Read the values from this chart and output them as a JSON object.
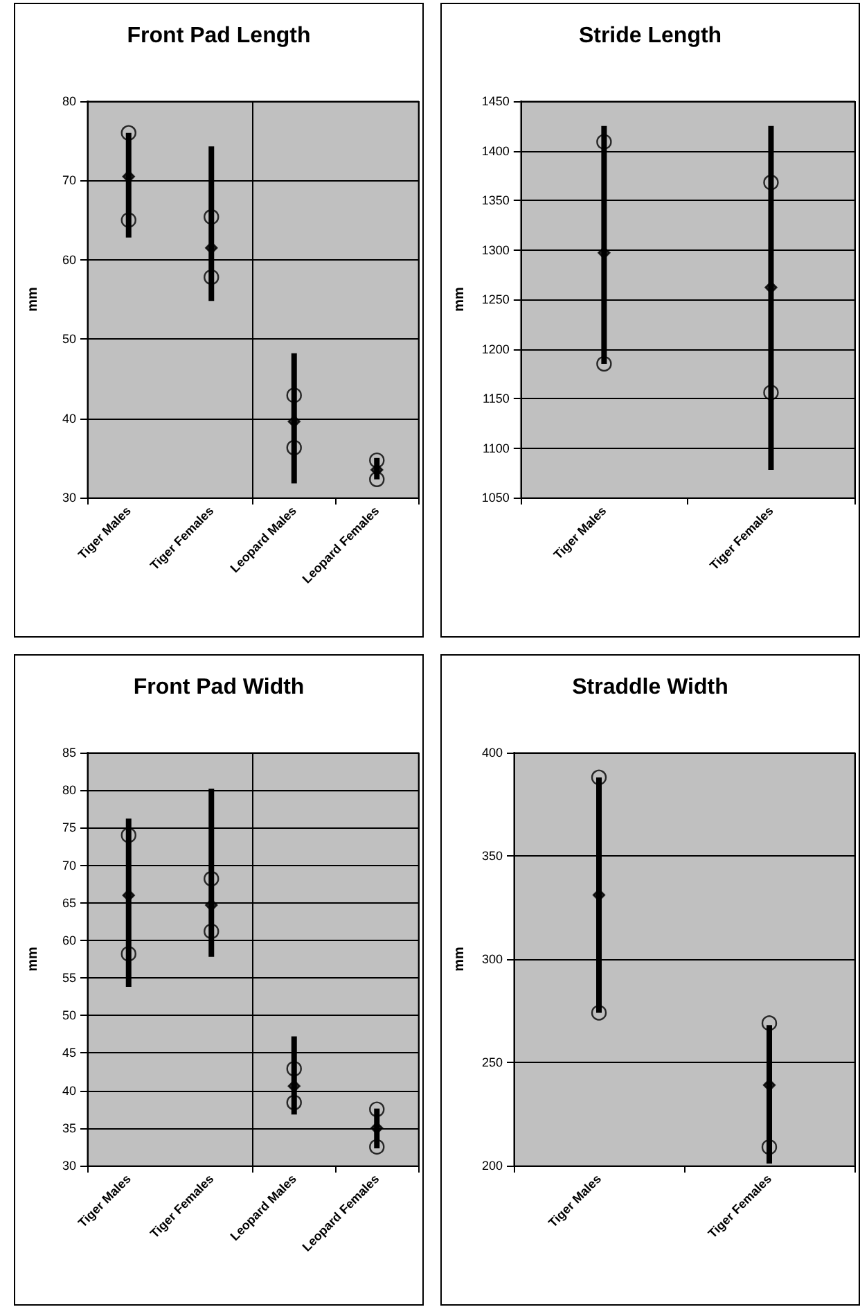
{
  "chart_data": [
    {
      "type": "scatter",
      "title": "Front Pad Length",
      "ylabel": "mm",
      "categories": [
        "Tiger Males",
        "Tiger Females",
        "Leopard Males",
        "Leopard Females"
      ],
      "ylim": [
        30,
        80
      ],
      "yticks": [
        30,
        40,
        50,
        60,
        70,
        80
      ],
      "grid": true,
      "series": [
        {
          "type": "bar",
          "color": "#000000",
          "base": [
            62.8,
            54.8,
            31.8,
            32.3
          ],
          "values": [
            13.2,
            19.5,
            16.4,
            2.7
          ]
        },
        {
          "marker": "circle",
          "color": "#000000",
          "values": [
            76,
            65.4,
            42.9,
            34.7
          ]
        },
        {
          "marker": "circle",
          "color": "#000000",
          "values": [
            65,
            57.8,
            36.3,
            32.3
          ]
        },
        {
          "marker": "diamond",
          "color": "#000000",
          "values": [
            70.5,
            61.5,
            39.6,
            33.5
          ]
        }
      ]
    },
    {
      "type": "scatter",
      "title": "Stride Length",
      "ylabel": "mm",
      "categories": [
        "Tiger Males",
        "Tiger Females"
      ],
      "ylim": [
        1050,
        1450
      ],
      "yticks": [
        1050,
        1100,
        1150,
        1200,
        1250,
        1300,
        1350,
        1400,
        1450
      ],
      "grid": true,
      "series": [
        {
          "type": "bar",
          "color": "#000000",
          "base": [
            1185,
            1078
          ],
          "values": [
            240,
            347
          ]
        },
        {
          "marker": "circle",
          "color": "#000000",
          "values": [
            1409,
            1368
          ]
        },
        {
          "marker": "circle",
          "color": "#000000",
          "values": [
            1185,
            1156
          ]
        },
        {
          "marker": "diamond",
          "color": "#000000",
          "values": [
            1297,
            1262
          ]
        }
      ]
    },
    {
      "type": "scatter",
      "title": "Front Pad Width",
      "ylabel": "mm",
      "categories": [
        "Tiger Males",
        "Tiger Females",
        "Leopard Males",
        "Leopard Females"
      ],
      "ylim": [
        30,
        85
      ],
      "yticks": [
        30,
        35,
        40,
        45,
        50,
        55,
        60,
        65,
        70,
        75,
        80,
        85
      ],
      "grid": true,
      "series": [
        {
          "type": "bar",
          "color": "#000000",
          "base": [
            53.8,
            57.8,
            36.8,
            32.3
          ],
          "values": [
            22.4,
            22.4,
            10.4,
            5.3
          ]
        },
        {
          "marker": "circle",
          "color": "#000000",
          "values": [
            74,
            68.2,
            42.9,
            37.5
          ]
        },
        {
          "marker": "circle",
          "color": "#000000",
          "values": [
            58.2,
            61.2,
            38.4,
            32.5
          ]
        },
        {
          "marker": "diamond",
          "color": "#000000",
          "values": [
            66,
            64.7,
            40.6,
            35
          ]
        }
      ]
    },
    {
      "type": "scatter",
      "title": "Straddle Width",
      "ylabel": "mm",
      "categories": [
        "Tiger Males",
        "Tiger Females"
      ],
      "ylim": [
        200,
        400
      ],
      "yticks": [
        200,
        250,
        300,
        350,
        400
      ],
      "grid": true,
      "series": [
        {
          "type": "bar",
          "color": "#000000",
          "base": [
            274,
            201
          ],
          "values": [
            114,
            67
          ]
        },
        {
          "marker": "circle",
          "color": "#000000",
          "values": [
            388,
            269
          ]
        },
        {
          "marker": "circle",
          "color": "#000000",
          "values": [
            274,
            209
          ]
        },
        {
          "marker": "diamond",
          "color": "#000000",
          "values": [
            331,
            239
          ]
        }
      ]
    }
  ]
}
